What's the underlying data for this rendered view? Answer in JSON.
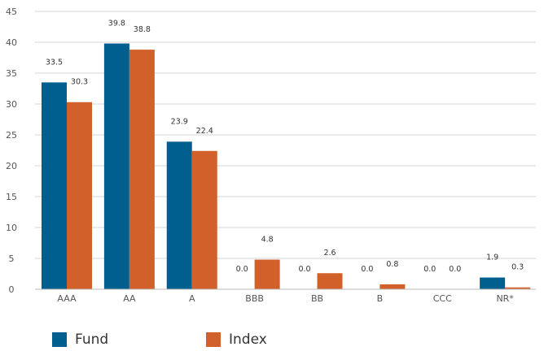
{
  "chart_data": {
    "type": "bar",
    "categories": [
      "AAA",
      "AA",
      "A",
      "BBB",
      "BB",
      "B",
      "CCC",
      "NR*"
    ],
    "series": [
      {
        "name": "Fund",
        "color": "#005f8f",
        "values": [
          33.5,
          39.8,
          23.9,
          0.0,
          0.0,
          0.0,
          0.0,
          1.9
        ],
        "labels": [
          "33.5",
          "39.8",
          "23.9",
          "0.0",
          "0.0",
          "0.0",
          "0.0",
          "1.9"
        ]
      },
      {
        "name": "Index",
        "color": "#d2602a",
        "values": [
          30.3,
          38.8,
          22.4,
          4.8,
          2.6,
          0.8,
          0.0,
          0.3
        ],
        "labels": [
          "30.3",
          "38.8",
          "22.4",
          "4.8",
          "2.6",
          "0.8",
          "0.0",
          "0.3"
        ]
      }
    ],
    "yticks": [
      "0",
      "5",
      "10",
      "15",
      "20",
      "25",
      "30",
      "35",
      "40",
      "45"
    ],
    "ylim": [
      0,
      45
    ],
    "grid": true,
    "legend_position": "bottom-left"
  }
}
